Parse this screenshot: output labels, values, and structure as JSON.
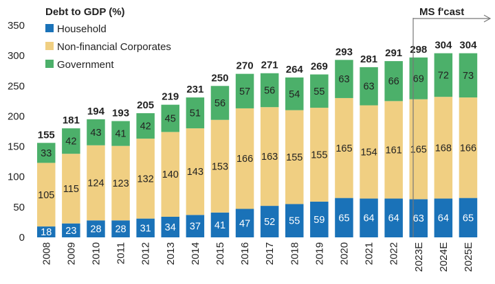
{
  "chart_data": {
    "type": "bar",
    "stacked": true,
    "title": "Debt to GDP (%)",
    "forecast_label": "MS f'cast",
    "categories": [
      "2008",
      "2009",
      "2010",
      "2011",
      "2012",
      "2013",
      "2014",
      "2015",
      "2016",
      "2017",
      "2018",
      "2019",
      "2020",
      "2021",
      "2022",
      "2023E",
      "2024E",
      "2025E"
    ],
    "series": [
      {
        "name": "Household",
        "color": "#1a72b8",
        "label_color": "#ffffff",
        "values": [
          18,
          23,
          28,
          28,
          31,
          34,
          37,
          41,
          47,
          52,
          55,
          59,
          65,
          64,
          64,
          63,
          64,
          65
        ]
      },
      {
        "name": "Non-financial Corporates",
        "color": "#f0cf82",
        "label_color": "#222222",
        "values": [
          105,
          115,
          124,
          123,
          132,
          140,
          143,
          153,
          166,
          163,
          155,
          155,
          165,
          154,
          161,
          165,
          168,
          166
        ]
      },
      {
        "name": "Government",
        "color": "#4cb06a",
        "label_color": "#222222",
        "values": [
          33,
          42,
          43,
          41,
          42,
          45,
          51,
          56,
          57,
          56,
          54,
          55,
          63,
          63,
          66,
          69,
          72,
          73
        ]
      }
    ],
    "totals": [
      155,
      181,
      194,
      193,
      205,
      219,
      231,
      250,
      270,
      271,
      264,
      269,
      293,
      281,
      291,
      298,
      304,
      304
    ],
    "ylim": [
      0,
      350
    ],
    "yticks": [
      0,
      50,
      100,
      150,
      200,
      250,
      300,
      350
    ],
    "forecast_start_index": 15,
    "legend_position": "top-left"
  }
}
